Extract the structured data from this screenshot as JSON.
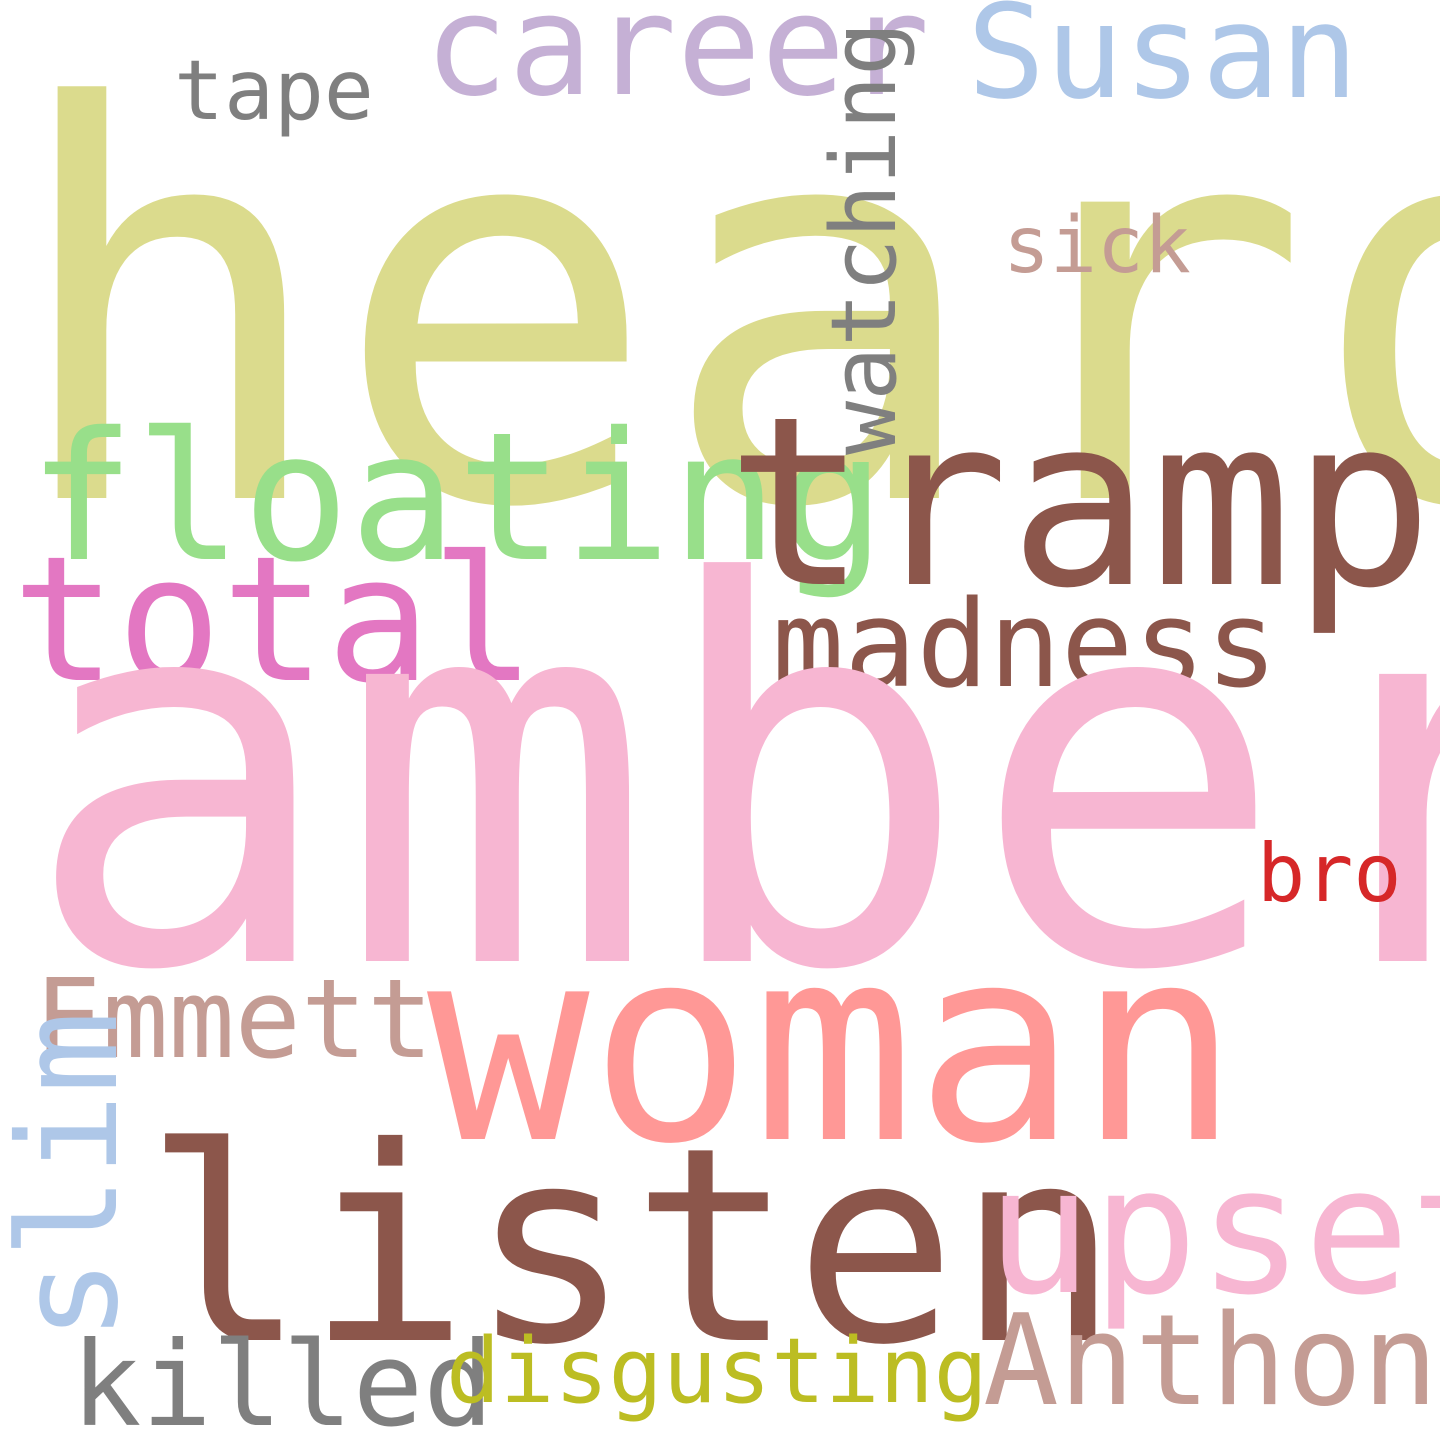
{
  "word_cloud": {
    "background_color": "#ffffff",
    "words": [
      {
        "id": "heard",
        "text": "heard",
        "color": "#dbdb8d",
        "orientation": "horizontal"
      },
      {
        "id": "career",
        "text": "career",
        "color": "#c5b0d5",
        "orientation": "horizontal"
      },
      {
        "id": "susan",
        "text": "Susan",
        "color": "#aec7e8",
        "orientation": "horizontal"
      },
      {
        "id": "tape",
        "text": "tape",
        "color": "#7f7f7f",
        "orientation": "horizontal"
      },
      {
        "id": "watching",
        "text": "watching",
        "color": "#7f7f7f",
        "orientation": "vertical"
      },
      {
        "id": "sick",
        "text": "sick",
        "color": "#c49c94",
        "orientation": "horizontal"
      },
      {
        "id": "floating",
        "text": "floating",
        "color": "#98df8a",
        "orientation": "horizontal"
      },
      {
        "id": "tramp",
        "text": "tramp",
        "color": "#8c564b",
        "orientation": "horizontal"
      },
      {
        "id": "total",
        "text": "total",
        "color": "#e377c2",
        "orientation": "horizontal"
      },
      {
        "id": "madness",
        "text": "madness",
        "color": "#8c564b",
        "orientation": "horizontal"
      },
      {
        "id": "amber",
        "text": "amber",
        "color": "#f7b6d2",
        "orientation": "horizontal"
      },
      {
        "id": "bro",
        "text": "bro",
        "color": "#d62728",
        "orientation": "horizontal"
      },
      {
        "id": "emmett",
        "text": "Emmett",
        "color": "#c49c94",
        "orientation": "horizontal"
      },
      {
        "id": "woman",
        "text": "woman",
        "color": "#ff9896",
        "orientation": "horizontal"
      },
      {
        "id": "slim",
        "text": "slim",
        "color": "#aec7e8",
        "orientation": "vertical"
      },
      {
        "id": "listen",
        "text": "listen",
        "color": "#8c564b",
        "orientation": "horizontal"
      },
      {
        "id": "upset",
        "text": "upset",
        "color": "#f7b6d2",
        "orientation": "horizontal"
      },
      {
        "id": "anthony",
        "text": "Anthony",
        "color": "#c49c94",
        "orientation": "horizontal"
      },
      {
        "id": "killed",
        "text": "killed",
        "color": "#7f7f7f",
        "orientation": "horizontal"
      },
      {
        "id": "disgusting",
        "text": "disgusting",
        "color": "#bcbd22",
        "orientation": "horizontal"
      }
    ]
  }
}
